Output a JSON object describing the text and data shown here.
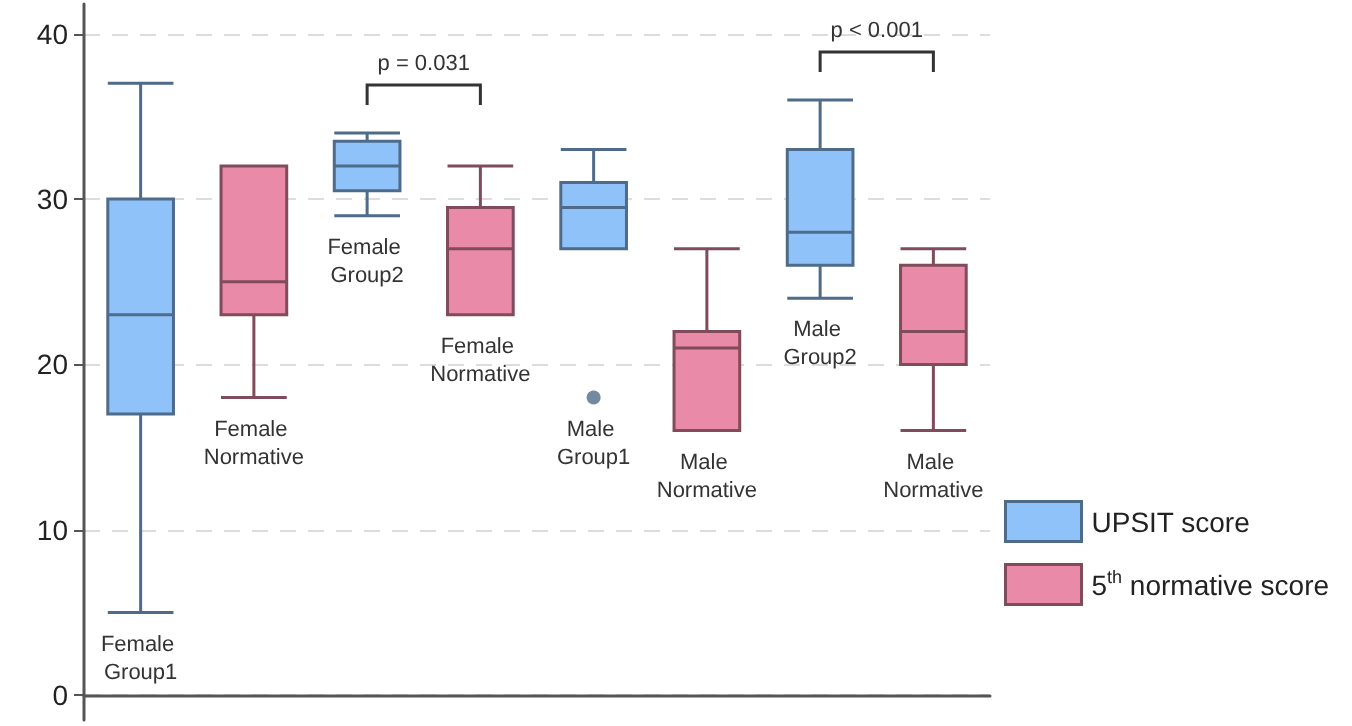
{
  "chart_data": {
    "type": "box",
    "categories": [
      "Female Group1",
      "Female Normative",
      "Female Group2",
      "Female Normative",
      "Male Group1",
      "Male Normative",
      "Male Group2",
      "Male Normative"
    ],
    "series": [
      {
        "name": "UPSIT score",
        "color": "#90c2fa",
        "boxes": [
          {
            "low": 5,
            "q1": 17,
            "median": 23,
            "q3": 30,
            "high": 37
          },
          null,
          {
            "low": 29,
            "q1": 30.5,
            "median": 32,
            "q3": 33.5,
            "high": 34
          },
          null,
          {
            "low": 27,
            "q1": 27,
            "median": 29.5,
            "q3": 31,
            "high": 33,
            "outliers": [
              18
            ]
          },
          null,
          {
            "low": 24,
            "q1": 26,
            "median": 28,
            "q3": 33,
            "high": 36
          },
          null
        ]
      },
      {
        "name": "5$^{th}$ normative score",
        "color": "#e98aa8",
        "boxes": [
          null,
          {
            "low": 18,
            "q1": 23,
            "median": 25,
            "q3": 32,
            "high": 32
          },
          null,
          {
            "low": 23,
            "q1": 23,
            "median": 27,
            "q3": 29.5,
            "high": 32
          },
          null,
          {
            "low": 16,
            "q1": 16,
            "median": 21,
            "q3": 22,
            "high": 27
          },
          null,
          {
            "low": 16,
            "q1": 20,
            "median": 22,
            "q3": 26,
            "high": 27
          }
        ]
      }
    ],
    "ylim": [
      -1.5,
      41.8
    ],
    "yticks": [
      0,
      10,
      20,
      30,
      40
    ],
    "grid": "y",
    "legend": "bottom right",
    "annotations": [
      "p = 0.031",
      "p < 0.001"
    ]
  }
}
